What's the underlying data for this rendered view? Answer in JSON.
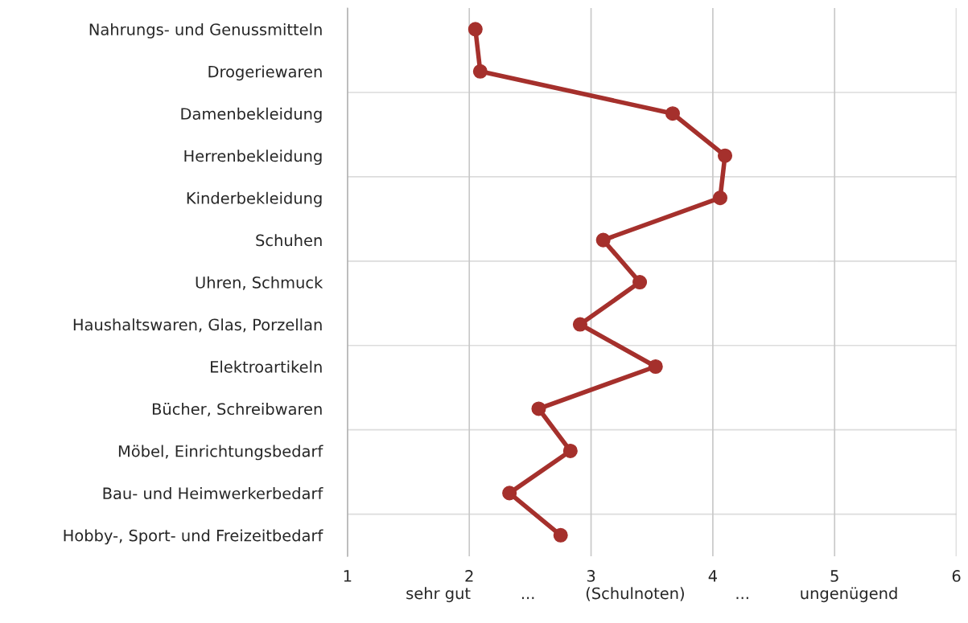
{
  "chart_data": {
    "type": "line",
    "orientation": "horizontal",
    "categories": [
      "Nahrungs- und Genussmitteln",
      "Drogeriewaren",
      "Damenbekleidung",
      "Herrenbekleidung",
      "Kinderbekleidung",
      "Schuhen",
      "Uhren, Schmuck",
      "Haushaltswaren, Glas, Porzellan",
      "Elektroartikeln",
      "Bücher, Schreibwaren",
      "Möbel, Einrichtungsbedarf",
      "Bau- und Heimwerkerbedarf",
      "Hobby-, Sport- und Freizeitbedarf"
    ],
    "series": [
      {
        "color": "#a5302c",
        "values": [
          2.05,
          2.09,
          3.67,
          4.1,
          4.06,
          3.1,
          3.4,
          2.91,
          3.53,
          2.57,
          2.83,
          2.33,
          2.75
        ]
      }
    ],
    "xlim": [
      1,
      6
    ],
    "xticks": [
      1,
      2,
      3,
      4,
      5,
      6
    ],
    "xlabel": "sehr gut          ...          (Schulnoten)          ...          ungenügend",
    "grid": true,
    "marker": "circle",
    "line_style": "solid"
  }
}
